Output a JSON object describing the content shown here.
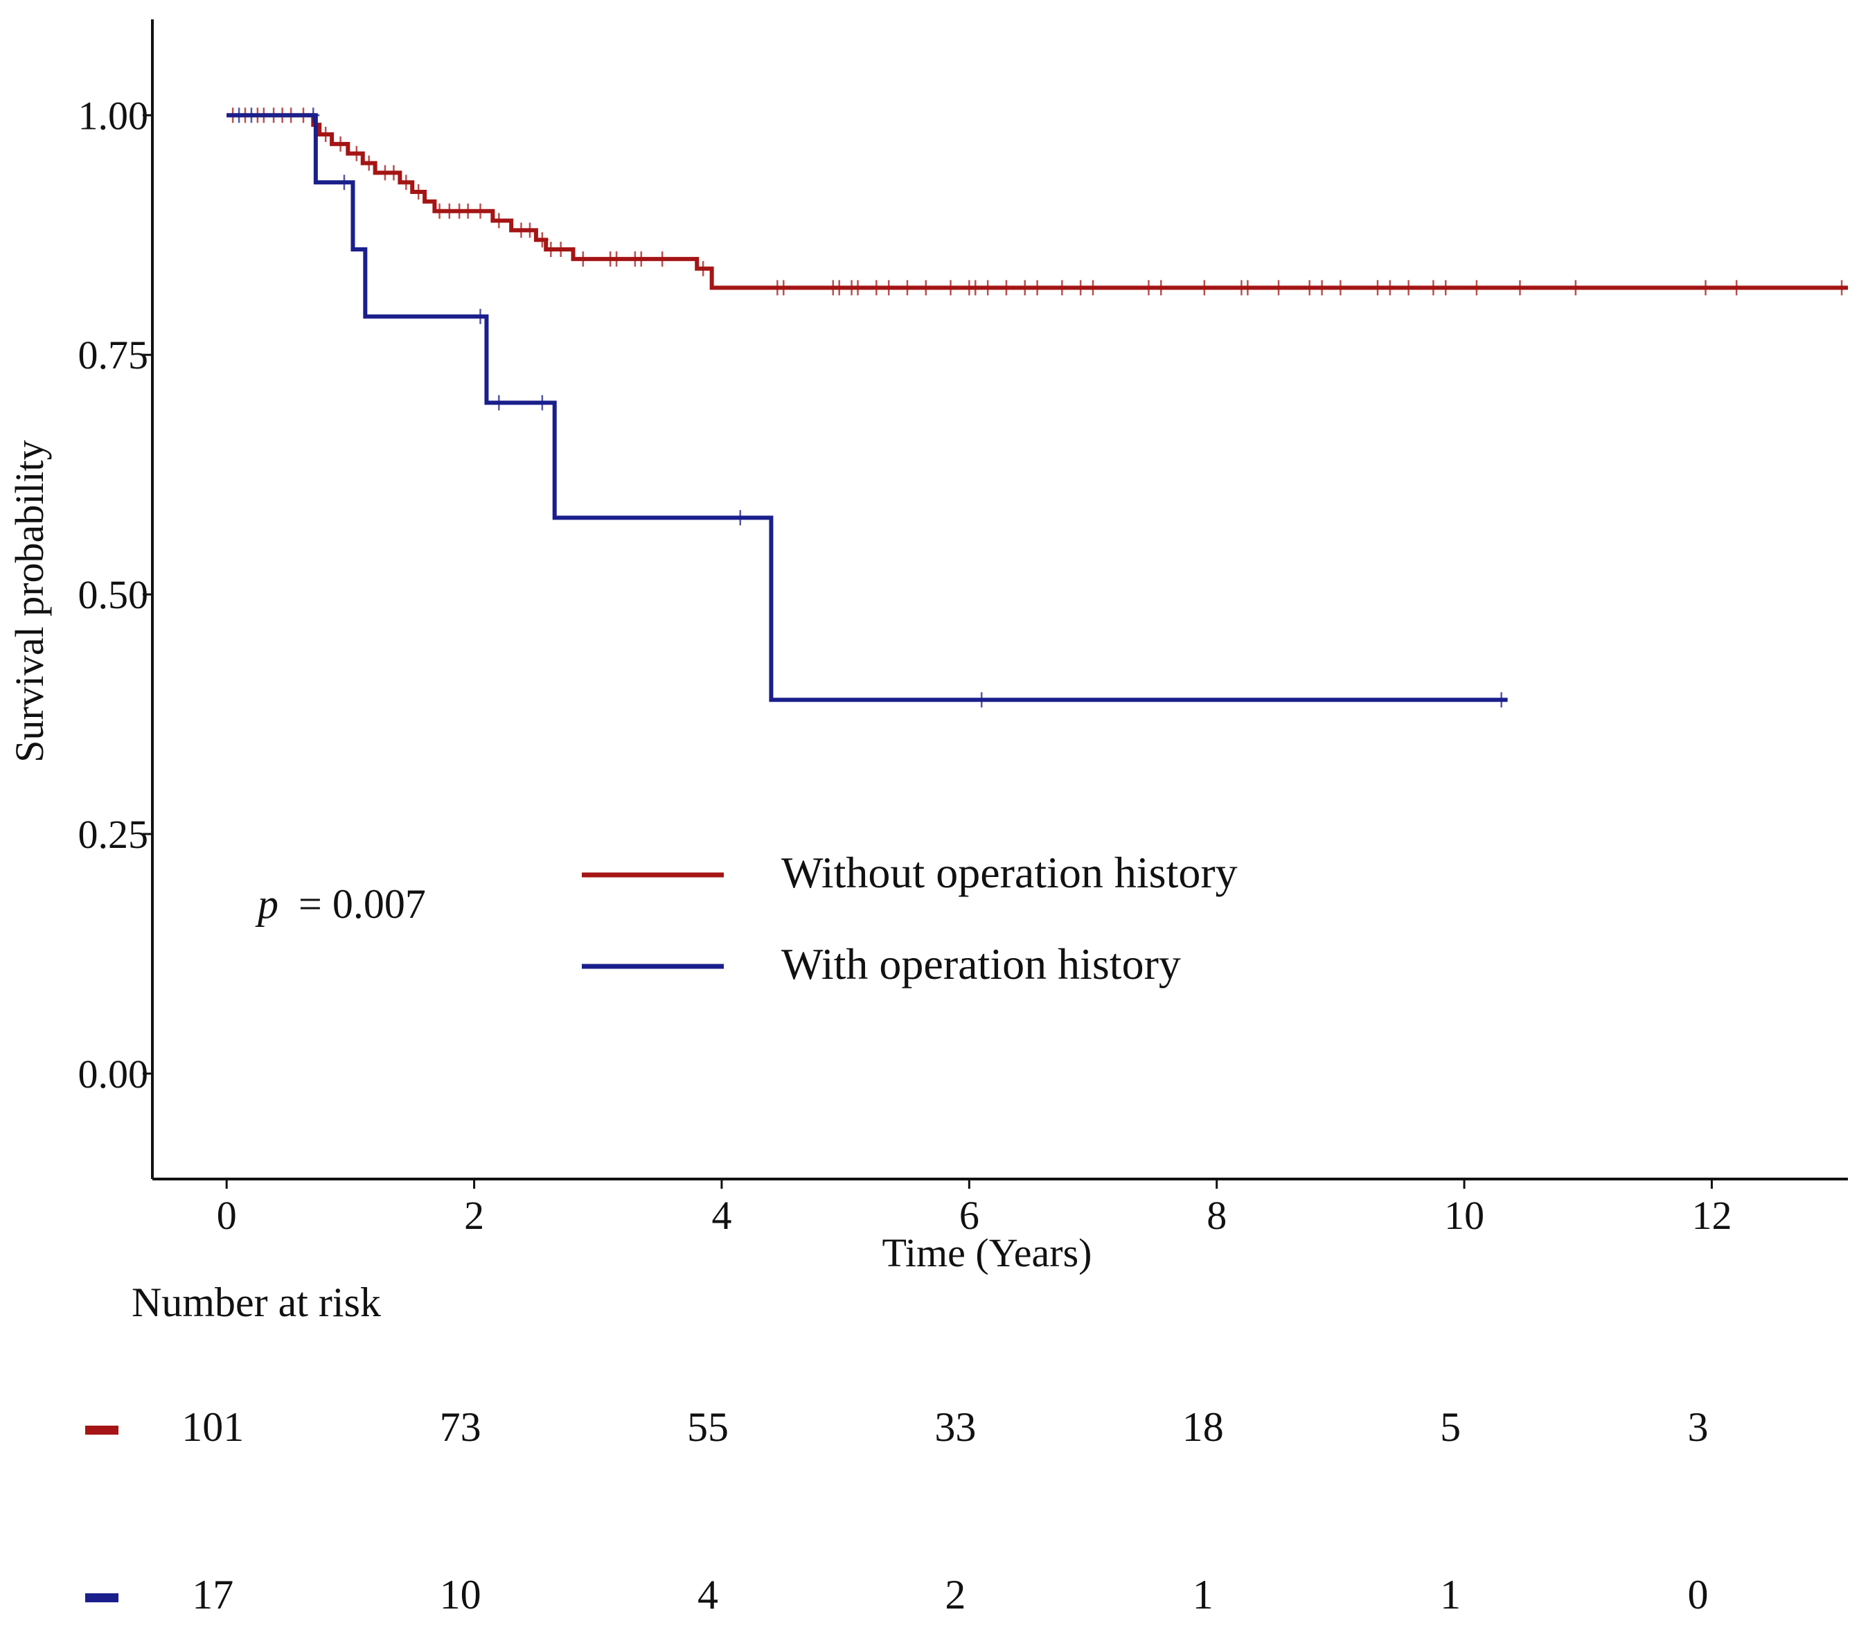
{
  "chart_data": {
    "type": "line",
    "subtype": "kaplan-meier",
    "title": "",
    "xlabel": "Time (Years)",
    "ylabel": "Survival probability",
    "xlim": [
      -0.6,
      13.1
    ],
    "ylim": [
      -0.11,
      1.1
    ],
    "x_ticks": [
      0,
      2,
      4,
      6,
      8,
      10,
      12
    ],
    "y_ticks": [
      0,
      0.25,
      0.5,
      0.75,
      1
    ],
    "x_tick_labels": [
      "0",
      "2",
      "4",
      "6",
      "8",
      "10",
      "12"
    ],
    "y_tick_labels": [
      "0.00",
      "0.25",
      "0.50",
      "0.75",
      "1.00"
    ],
    "grid": false,
    "legend_position": "center",
    "annotation": {
      "p_symbol": "p",
      "p_value": "= 0.007"
    },
    "series": [
      {
        "name": "Without operation history",
        "color": "#a51515",
        "steps": [
          [
            0,
            1.0
          ],
          [
            0.7,
            0.99
          ],
          [
            0.75,
            0.98
          ],
          [
            0.85,
            0.97
          ],
          [
            0.98,
            0.96
          ],
          [
            1.1,
            0.95
          ],
          [
            1.2,
            0.94
          ],
          [
            1.4,
            0.93
          ],
          [
            1.5,
            0.92
          ],
          [
            1.6,
            0.91
          ],
          [
            1.68,
            0.9
          ],
          [
            2.15,
            0.89
          ],
          [
            2.3,
            0.88
          ],
          [
            2.5,
            0.87
          ],
          [
            2.58,
            0.86
          ],
          [
            2.8,
            0.85
          ],
          [
            3.8,
            0.84
          ],
          [
            3.92,
            0.82
          ]
        ],
        "end": 13.1,
        "censor_times": [
          0.05,
          0.15,
          0.25,
          0.3,
          0.38,
          0.45,
          0.52,
          0.62,
          0.8,
          0.92,
          1.05,
          1.15,
          1.28,
          1.35,
          1.45,
          1.55,
          1.72,
          1.8,
          1.88,
          1.95,
          2.05,
          2.2,
          2.38,
          2.45,
          2.55,
          2.62,
          2.7,
          2.88,
          3.1,
          3.15,
          3.3,
          3.35,
          3.52,
          3.85,
          4.45,
          4.5,
          4.9,
          4.95,
          5.05,
          5.1,
          5.25,
          5.35,
          5.5,
          5.65,
          5.85,
          6.0,
          6.05,
          6.15,
          6.3,
          6.45,
          6.55,
          6.75,
          6.9,
          7.0,
          7.45,
          7.55,
          7.9,
          8.2,
          8.25,
          8.5,
          8.75,
          8.85,
          9.0,
          9.3,
          9.4,
          9.55,
          9.75,
          9.85,
          10.1,
          10.45,
          10.9,
          11.95,
          12.2,
          13.05
        ]
      },
      {
        "name": "With operation history",
        "color": "#1a1f8c",
        "steps": [
          [
            0,
            1.0
          ],
          [
            0.72,
            0.93
          ],
          [
            1.02,
            0.86
          ],
          [
            1.12,
            0.79
          ],
          [
            2.1,
            0.7
          ],
          [
            2.65,
            0.58
          ],
          [
            4.4,
            0.39
          ]
        ],
        "end": 10.35,
        "censor_times": [
          0.1,
          0.2,
          0.7,
          0.95,
          2.05,
          2.2,
          2.55,
          4.15,
          6.1,
          10.3
        ]
      }
    ],
    "risk_table": {
      "title": "Number at risk",
      "times": [
        0,
        2,
        4,
        6,
        8,
        10,
        12
      ],
      "rows": [
        {
          "series": "Without operation history",
          "color": "#a51515",
          "counts": [
            "101",
            "73",
            "55",
            "33",
            "18",
            "5",
            "3"
          ]
        },
        {
          "series": "With operation history",
          "color": "#1a1f8c",
          "counts": [
            "17",
            "10",
            "4",
            "2",
            "1",
            "1",
            "0"
          ]
        }
      ]
    }
  }
}
